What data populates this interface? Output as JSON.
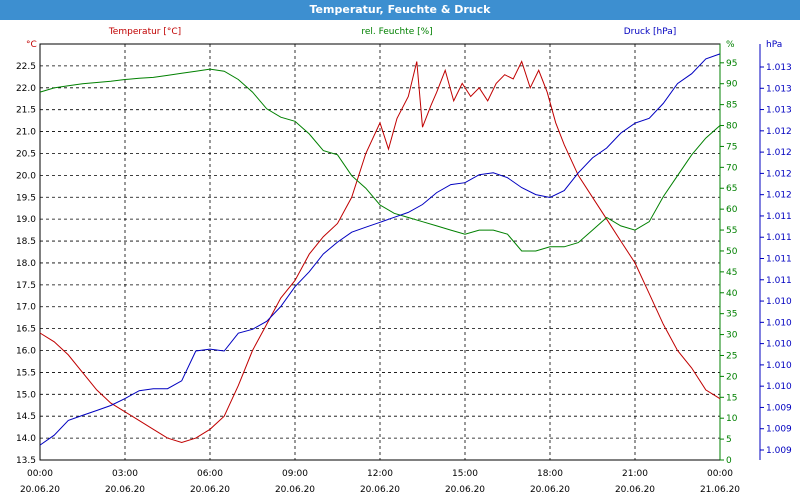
{
  "window": {
    "title": "Temperatur, Feuchte & Druck"
  },
  "chart_data": {
    "type": "line",
    "grid": true,
    "x_ticks": [
      {
        "time": "00:00",
        "date": "20.06.20"
      },
      {
        "time": "03:00",
        "date": "20.06.20"
      },
      {
        "time": "06:00",
        "date": "20.06.20"
      },
      {
        "time": "09:00",
        "date": "20.06.20"
      },
      {
        "time": "12:00",
        "date": "20.06.20"
      },
      {
        "time": "15:00",
        "date": "20.06.20"
      },
      {
        "time": "18:00",
        "date": "20.06.20"
      },
      {
        "time": "21:00",
        "date": "20.06.20"
      },
      {
        "time": "00:00",
        "date": "21.06.20"
      }
    ],
    "xlim_hours": [
      0,
      24
    ],
    "axes": {
      "temperature": {
        "label": "Temperatur [°C]",
        "unit": "°C",
        "color": "#c00000",
        "position": "left",
        "ylim": [
          13.5,
          23.0
        ],
        "ticks": [
          "13.5",
          "14.0",
          "14.5",
          "15.0",
          "15.5",
          "16.0",
          "16.5",
          "17.0",
          "17.5",
          "18.0",
          "18.5",
          "19.0",
          "19.5",
          "20.0",
          "20.5",
          "21.0",
          "21.5",
          "22.0",
          "22.5"
        ]
      },
      "humidity": {
        "label": "rel. Feuchte [%]",
        "unit": "%",
        "color": "#008000",
        "position": "right",
        "ylim": [
          0,
          99.5
        ],
        "ticks": [
          "0",
          "5",
          "10",
          "15",
          "20",
          "25",
          "30",
          "35",
          "40",
          "45",
          "50",
          "55",
          "60",
          "65",
          "70",
          "75",
          "80",
          "85",
          "90",
          "95"
        ]
      },
      "pressure": {
        "label": "Druck [hPa]",
        "unit": "hPa",
        "color": "#0000c0",
        "position": "right-outer",
        "ylim": [
          1009.0,
          1013.2
        ],
        "ticks": [
          "1.009",
          "1.009",
          "1.009",
          "1.010",
          "1.010",
          "1.010",
          "1.010",
          "1.010",
          "1.011",
          "1.011",
          "1.011",
          "1.011",
          "1.012",
          "1.012",
          "1.012",
          "1.012",
          "1.013",
          "1.013",
          "1.013"
        ]
      }
    },
    "series": [
      {
        "name": "Temperatur [°C]",
        "axis": "temperature",
        "color": "#c00000",
        "x": [
          0,
          0.5,
          1,
          1.5,
          2,
          2.5,
          3,
          3.5,
          4,
          4.5,
          5,
          5.5,
          6,
          6.5,
          7,
          7.5,
          8,
          8.5,
          9,
          9.5,
          10,
          10.5,
          11,
          11.5,
          12,
          12.3,
          12.6,
          13,
          13.3,
          13.5,
          13.8,
          14,
          14.3,
          14.6,
          14.9,
          15.2,
          15.5,
          15.8,
          16.1,
          16.4,
          16.7,
          17,
          17.3,
          17.6,
          17.9,
          18.2,
          18.5,
          19,
          19.5,
          20,
          20.5,
          21,
          21.5,
          22,
          22.5,
          23,
          23.5,
          24
        ],
        "values": [
          16.4,
          16.2,
          15.9,
          15.5,
          15.1,
          14.8,
          14.6,
          14.4,
          14.2,
          14.0,
          13.9,
          14.0,
          14.2,
          14.5,
          15.2,
          16.0,
          16.6,
          17.2,
          17.6,
          18.2,
          18.6,
          18.9,
          19.5,
          20.5,
          21.2,
          20.6,
          21.3,
          21.8,
          22.6,
          21.1,
          21.6,
          21.9,
          22.4,
          21.7,
          22.1,
          21.8,
          22.0,
          21.7,
          22.1,
          22.3,
          22.2,
          22.6,
          22.0,
          22.4,
          21.9,
          21.2,
          20.7,
          20.0,
          19.5,
          19.0,
          18.5,
          18.0,
          17.3,
          16.6,
          16.0,
          15.6,
          15.1,
          14.9
        ]
      },
      {
        "name": "rel. Feuchte [%]",
        "axis": "humidity",
        "color": "#008000",
        "x": [
          0,
          0.5,
          1,
          1.5,
          2,
          2.5,
          3,
          3.5,
          4,
          4.5,
          5,
          5.5,
          6,
          6.5,
          7,
          7.5,
          8,
          8.5,
          9,
          9.5,
          10,
          10.5,
          11,
          11.5,
          12,
          12.5,
          13,
          13.5,
          14,
          14.5,
          15,
          15.5,
          16,
          16.5,
          17,
          17.5,
          18,
          18.5,
          19,
          19.5,
          20,
          20.5,
          21,
          21.5,
          22,
          22.5,
          23,
          23.5,
          24
        ],
        "values": [
          88,
          89,
          89.5,
          90,
          90.3,
          90.6,
          91,
          91.3,
          91.5,
          92,
          92.5,
          93,
          93.5,
          93,
          91,
          88,
          84,
          82,
          81,
          78,
          74,
          73,
          68,
          65,
          61,
          59,
          58,
          57,
          56,
          55,
          54,
          55,
          55,
          54,
          50,
          50,
          51,
          51,
          52,
          55,
          58,
          56,
          55,
          57,
          63,
          68,
          73,
          77,
          80
        ]
      },
      {
        "name": "Druck [hPa]",
        "axis": "pressure",
        "color": "#0000c0",
        "x": [
          0,
          0.5,
          1,
          1.5,
          2,
          2.5,
          3,
          3.5,
          4,
          4.5,
          5,
          5.5,
          6,
          6.5,
          7,
          7.5,
          8,
          8.5,
          9,
          9.5,
          10,
          10.5,
          11,
          11.5,
          12,
          12.5,
          13,
          13.5,
          14,
          14.5,
          15,
          15.5,
          16,
          16.5,
          17,
          17.5,
          18,
          18.5,
          19,
          19.5,
          20,
          20.5,
          21,
          21.5,
          22,
          22.5,
          23,
          23.5,
          24
        ],
        "values": [
          1009.15,
          1009.25,
          1009.4,
          1009.45,
          1009.5,
          1009.55,
          1009.62,
          1009.7,
          1009.72,
          1009.72,
          1009.8,
          1010.1,
          1010.12,
          1010.1,
          1010.28,
          1010.32,
          1010.4,
          1010.55,
          1010.75,
          1010.9,
          1011.08,
          1011.2,
          1011.3,
          1011.35,
          1011.4,
          1011.45,
          1011.5,
          1011.58,
          1011.7,
          1011.78,
          1011.8,
          1011.88,
          1011.9,
          1011.85,
          1011.75,
          1011.68,
          1011.65,
          1011.72,
          1011.9,
          1012.05,
          1012.15,
          1012.3,
          1012.4,
          1012.45,
          1012.6,
          1012.8,
          1012.9,
          1013.05,
          1013.1
        ]
      }
    ]
  }
}
